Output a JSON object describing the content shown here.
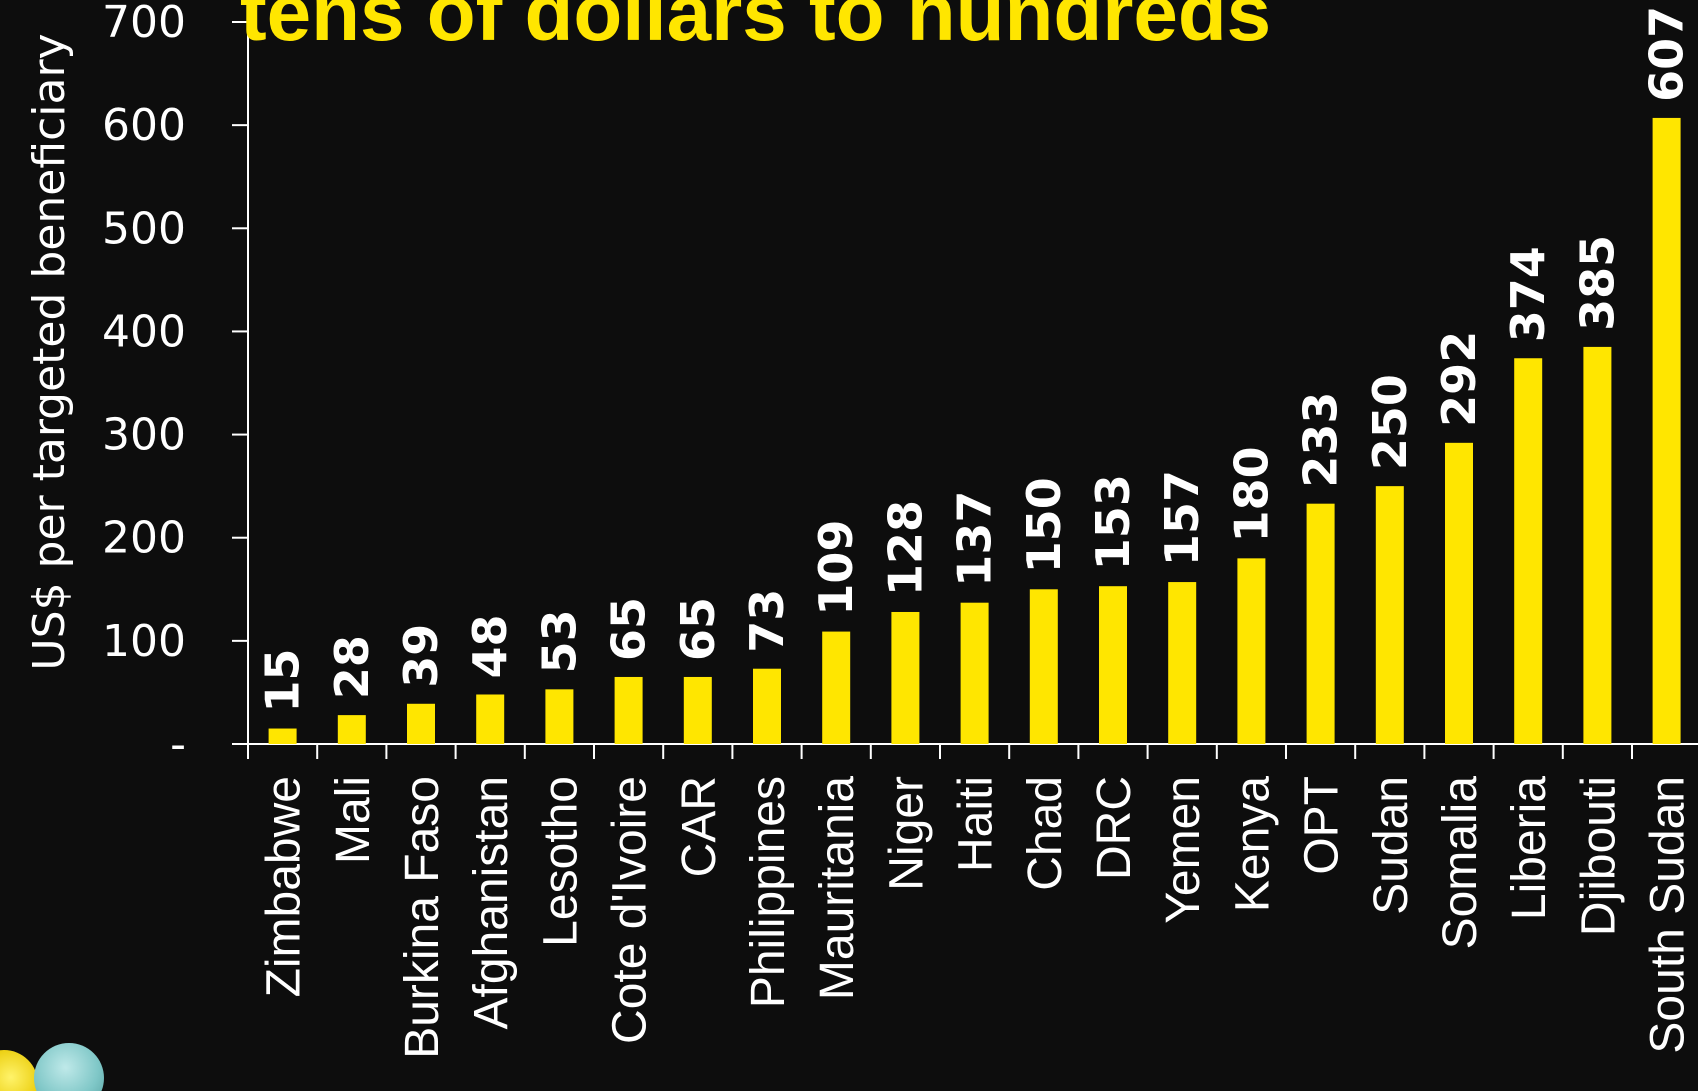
{
  "headline": "tens of dollars to hundreds",
  "colors": {
    "background": "#0d0d0d",
    "bar": "#ffe600",
    "text": "#ffffff",
    "headline": "#ffe600"
  },
  "chart_data": {
    "type": "bar",
    "title": "",
    "xlabel": "",
    "ylabel": "US$ per targeted beneficiary",
    "ylim": [
      0,
      700
    ],
    "yticks": [
      0,
      100,
      200,
      300,
      400,
      500,
      600,
      700
    ],
    "ytick_labels": [
      "-",
      "100",
      "200",
      "300",
      "400",
      "500",
      "600",
      "700"
    ],
    "grid": false,
    "legend": "none",
    "categories": [
      "Zimbabwe",
      "Mali",
      "Burkina Faso",
      "Afghanistan",
      "Lesotho",
      "Cote d'Ivoire",
      "CAR",
      "Philippines",
      "Mauritania",
      "Niger",
      "Haiti",
      "Chad",
      "DRC",
      "Yemen",
      "Kenya",
      "OPT",
      "Sudan",
      "Somalia",
      "Liberia",
      "Djibouti",
      "South Sudan"
    ],
    "values": [
      15,
      28,
      39,
      48,
      53,
      65,
      65,
      73,
      109,
      128,
      137,
      150,
      153,
      157,
      180,
      233,
      250,
      292,
      374,
      385,
      607
    ],
    "data_labels": [
      "15",
      "28",
      "39",
      "48",
      "53",
      "65",
      "65",
      "73",
      "109",
      "128",
      "137",
      "150",
      "153",
      "157",
      "180",
      "233",
      "250",
      "292",
      "374",
      "385",
      "607"
    ]
  },
  "logo": {
    "shapes": [
      "yellow-circle",
      "teal-circle"
    ]
  }
}
